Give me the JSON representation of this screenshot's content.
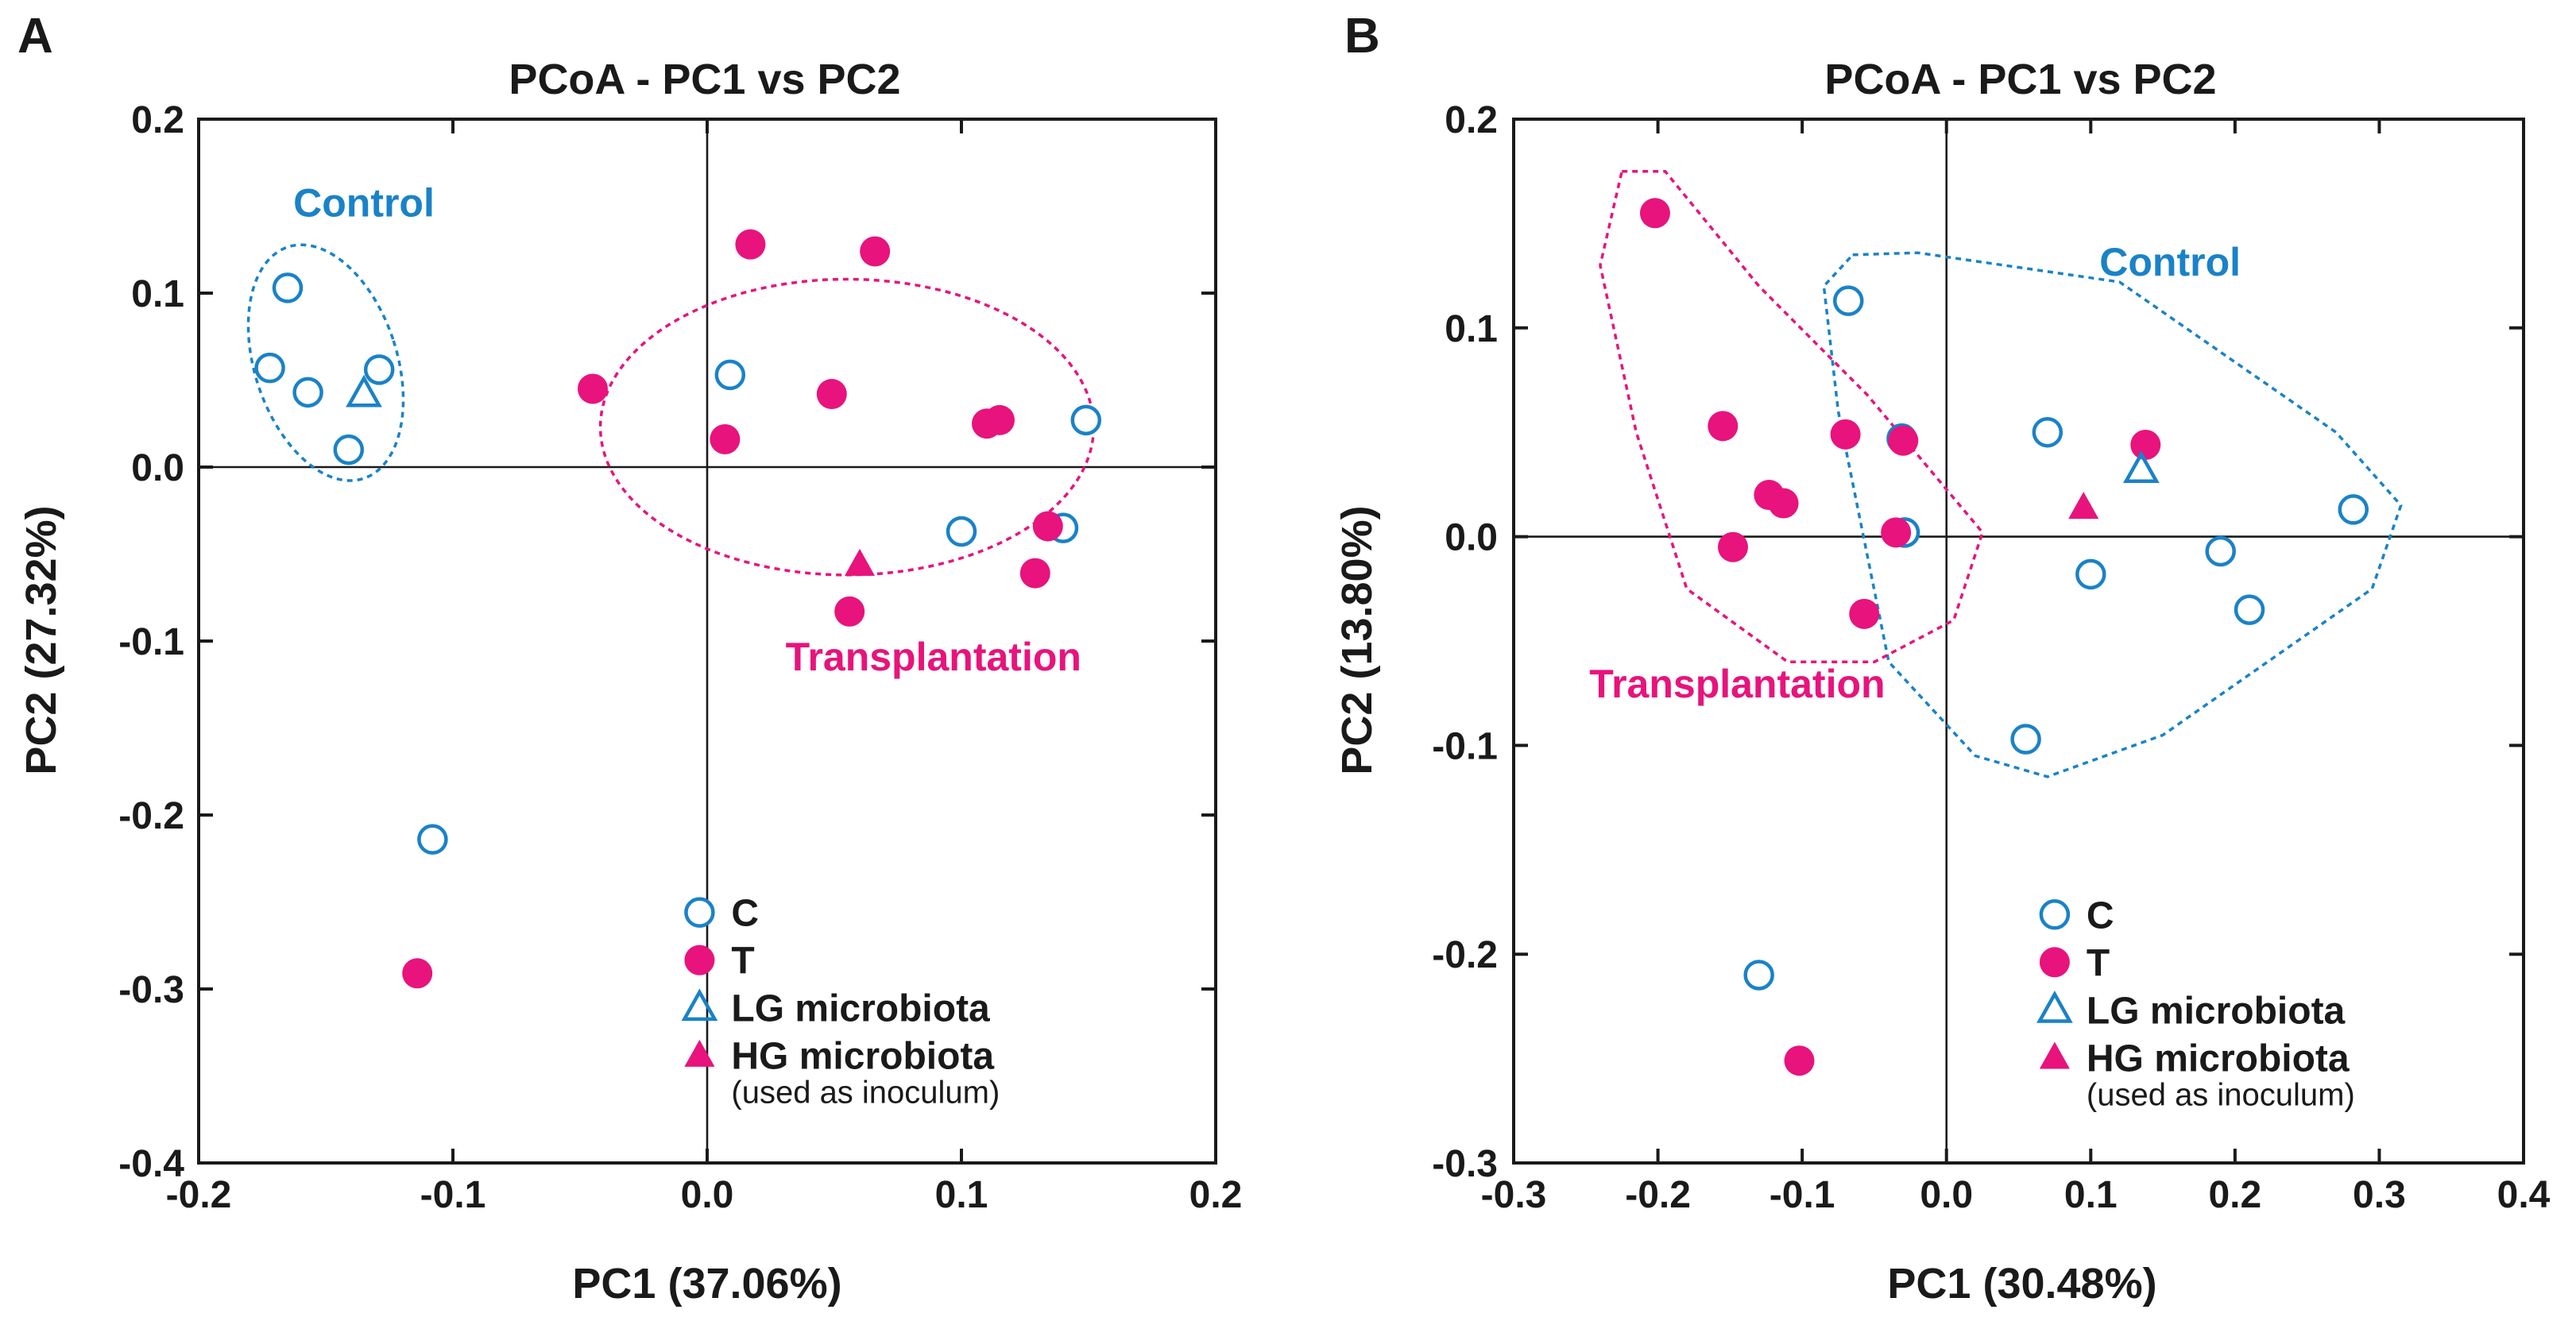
{
  "figure": {
    "colors": {
      "control": "#1a82c8",
      "transplant": "#e8137c",
      "axis": "#1a1a1a"
    },
    "legend_labels": [
      "C",
      "T",
      "LG microbiota",
      "HG microbiota"
    ],
    "legend_note": "(used as inoculum)"
  },
  "chart_data": [
    {
      "panel_label": "A",
      "type": "scatter",
      "title": "PCoA - PC1 vs PC2",
      "xlabel": "PC1 (37.06%)",
      "ylabel": "PC2 (27.32%)",
      "xlim": [
        -0.2,
        0.2
      ],
      "ylim": [
        -0.4,
        0.2
      ],
      "xticks": [
        -0.2,
        -0.1,
        0.0,
        0.1,
        0.2
      ],
      "yticks": [
        -0.4,
        -0.3,
        -0.2,
        -0.1,
        0.0,
        0.1,
        0.2
      ],
      "xtick_labels": [
        "-0.2",
        "-0.1",
        "0.0",
        "0.1",
        "0.2"
      ],
      "ytick_labels": [
        "-0.4",
        "-0.3",
        "-0.2",
        "-0.1",
        "0.0",
        "0.1",
        "0.2"
      ],
      "grid": false,
      "zero_lines": true,
      "legend_position": "bottom-right",
      "series": [
        {
          "name": "C",
          "marker": "open-circle",
          "points": [
            [
              -0.165,
              0.103
            ],
            [
              -0.172,
              0.057
            ],
            [
              -0.157,
              0.043
            ],
            [
              -0.129,
              0.056
            ],
            [
              -0.141,
              0.01
            ],
            [
              0.009,
              0.053
            ],
            [
              0.149,
              0.027
            ],
            [
              0.1,
              -0.037
            ],
            [
              0.14,
              -0.035
            ],
            [
              -0.108,
              -0.214
            ]
          ]
        },
        {
          "name": "T",
          "marker": "filled-circle",
          "points": [
            [
              0.017,
              0.128
            ],
            [
              0.066,
              0.124
            ],
            [
              -0.045,
              0.045
            ],
            [
              0.049,
              0.042
            ],
            [
              0.007,
              0.016
            ],
            [
              0.11,
              0.025
            ],
            [
              0.115,
              0.027
            ],
            [
              0.134,
              -0.034
            ],
            [
              0.129,
              -0.061
            ],
            [
              0.056,
              -0.083
            ],
            [
              -0.114,
              -0.291
            ]
          ]
        },
        {
          "name": "LG microbiota",
          "marker": "open-triangle",
          "points": [
            [
              -0.135,
              0.042
            ]
          ]
        },
        {
          "name": "HG microbiota",
          "marker": "filled-triangle",
          "points": [
            [
              0.06,
              -0.056
            ]
          ]
        }
      ],
      "annotations": [
        {
          "text": "Control",
          "group": "control",
          "x": -0.135,
          "y": 0.144
        },
        {
          "text": "Transplantation",
          "group": "transplant",
          "x": 0.089,
          "y": -0.117
        }
      ],
      "ellipses": [
        {
          "group": "control",
          "cx": -0.15,
          "cy": 0.06,
          "rx": 0.028,
          "ry": 0.07,
          "angle": 18
        },
        {
          "group": "transplant",
          "cx": 0.055,
          "cy": 0.023,
          "rx": 0.097,
          "ry": 0.085,
          "angle": 0
        }
      ]
    },
    {
      "panel_label": "B",
      "type": "scatter",
      "title": "PCoA - PC1 vs PC2",
      "xlabel": "PC1 (30.48%)",
      "ylabel": "PC2 (13.80%)",
      "xlim": [
        -0.3,
        0.4
      ],
      "ylim": [
        -0.3,
        0.2
      ],
      "xticks": [
        -0.3,
        -0.2,
        -0.1,
        0.0,
        0.1,
        0.2,
        0.3,
        0.4
      ],
      "yticks": [
        -0.3,
        -0.2,
        -0.1,
        0.0,
        0.1,
        0.2
      ],
      "xtick_labels": [
        "-0.3",
        "-0.2",
        "-0.1",
        "0.0",
        "0.1",
        "0.2",
        "0.3",
        "0.4"
      ],
      "ytick_labels": [
        "-0.3",
        "-0.2",
        "-0.1",
        "0.0",
        "0.1",
        "0.2"
      ],
      "grid": false,
      "zero_lines": true,
      "legend_position": "bottom-right",
      "series": [
        {
          "name": "C",
          "marker": "open-circle",
          "points": [
            [
              -0.068,
              0.113
            ],
            [
              -0.031,
              0.047
            ],
            [
              0.07,
              0.05
            ],
            [
              0.282,
              0.013
            ],
            [
              -0.029,
              0.002
            ],
            [
              0.1,
              -0.018
            ],
            [
              0.19,
              -0.007
            ],
            [
              0.21,
              -0.035
            ],
            [
              0.055,
              -0.097
            ],
            [
              -0.13,
              -0.21
            ]
          ]
        },
        {
          "name": "T",
          "marker": "filled-circle",
          "points": [
            [
              -0.202,
              0.155
            ],
            [
              -0.155,
              0.053
            ],
            [
              -0.07,
              0.049
            ],
            [
              -0.03,
              0.046
            ],
            [
              -0.123,
              0.02
            ],
            [
              -0.113,
              0.016
            ],
            [
              -0.148,
              -0.005
            ],
            [
              -0.035,
              0.002
            ],
            [
              -0.057,
              -0.037
            ],
            [
              0.138,
              0.044
            ],
            [
              -0.102,
              -0.251
            ]
          ]
        },
        {
          "name": "LG microbiota",
          "marker": "open-triangle",
          "points": [
            [
              0.135,
              0.032
            ]
          ]
        },
        {
          "name": "HG microbiota",
          "marker": "filled-triangle",
          "points": [
            [
              0.095,
              0.014
            ]
          ]
        }
      ],
      "annotations": [
        {
          "text": "Control",
          "group": "control",
          "x": 0.155,
          "y": 0.125
        },
        {
          "text": "Transplantation",
          "group": "transplant",
          "x": -0.145,
          "y": -0.077
        }
      ],
      "polygons": [
        {
          "group": "control",
          "points": [
            [
              -0.065,
              0.135
            ],
            [
              -0.02,
              0.136
            ],
            [
              0.12,
              0.122
            ],
            [
              0.27,
              0.05
            ],
            [
              0.315,
              0.015
            ],
            [
              0.295,
              -0.025
            ],
            [
              0.15,
              -0.095
            ],
            [
              0.07,
              -0.115
            ],
            [
              0.02,
              -0.105
            ],
            [
              -0.04,
              -0.06
            ],
            [
              -0.075,
              0.06
            ],
            [
              -0.085,
              0.12
            ]
          ]
        },
        {
          "group": "transplant",
          "points": [
            [
              -0.225,
              0.175
            ],
            [
              -0.195,
              0.175
            ],
            [
              -0.13,
              0.12
            ],
            [
              -0.055,
              0.068
            ],
            [
              -0.015,
              0.035
            ],
            [
              0.025,
              0.002
            ],
            [
              0.005,
              -0.04
            ],
            [
              -0.05,
              -0.06
            ],
            [
              -0.11,
              -0.06
            ],
            [
              -0.18,
              -0.025
            ],
            [
              -0.215,
              0.05
            ],
            [
              -0.24,
              0.13
            ]
          ]
        }
      ]
    }
  ]
}
